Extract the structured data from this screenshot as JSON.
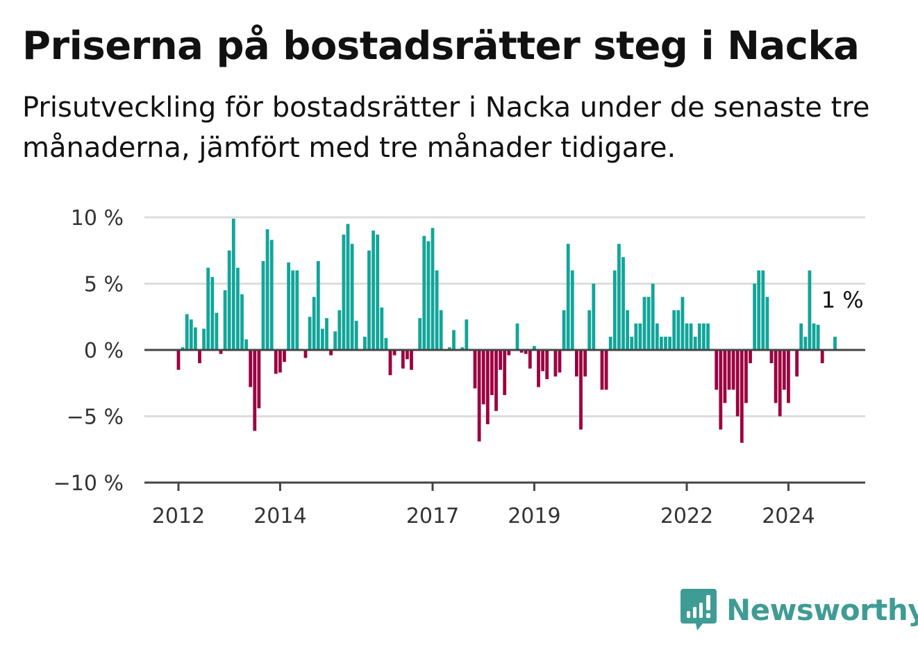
{
  "chart_data": {
    "type": "bar",
    "title": "Priserna på bostadsrätter steg i Nacka",
    "subtitle": "Prisutveckling för bostadsrätter i Nacka under de senaste tre månaderna, jämfört med tre månader tidigare.",
    "ylabel": "",
    "xlabel": "",
    "ylim": [
      -10,
      10
    ],
    "yticks": [
      10,
      5,
      0,
      -5,
      -10
    ],
    "ytick_labels": [
      "10 %",
      "5 %",
      "0 %",
      "−5 %",
      "−10 %"
    ],
    "xticks": [
      2012,
      2014,
      2017,
      2019,
      2022,
      2024
    ],
    "xtick_labels": [
      "2012",
      "2014",
      "2017",
      "2019",
      "2022",
      "2024"
    ],
    "x_start": "2012-01",
    "positive_color": "#12a59a",
    "negative_color": "#9c0040",
    "grid": true,
    "annotation": {
      "text": "1 %",
      "x": "2024-09",
      "y": 1.0
    },
    "x": [
      "2012-01",
      "2012-02",
      "2012-03",
      "2012-04",
      "2012-05",
      "2012-06",
      "2012-07",
      "2012-08",
      "2012-09",
      "2012-10",
      "2012-11",
      "2012-12",
      "2013-01",
      "2013-02",
      "2013-03",
      "2013-04",
      "2013-05",
      "2013-06",
      "2013-07",
      "2013-08",
      "2013-09",
      "2013-10",
      "2013-11",
      "2013-12",
      "2014-01",
      "2014-02",
      "2014-03",
      "2014-04",
      "2014-05",
      "2014-06",
      "2014-07",
      "2014-08",
      "2014-09",
      "2014-10",
      "2014-11",
      "2014-12",
      "2015-01",
      "2015-02",
      "2015-03",
      "2015-04",
      "2015-05",
      "2015-06",
      "2015-07",
      "2015-08",
      "2015-09",
      "2015-10",
      "2015-11",
      "2015-12",
      "2016-01",
      "2016-02",
      "2016-03",
      "2016-04",
      "2016-05",
      "2016-06",
      "2016-07",
      "2016-08",
      "2016-09",
      "2016-10",
      "2016-11",
      "2016-12",
      "2017-01",
      "2017-02",
      "2017-03",
      "2017-04",
      "2017-05",
      "2017-06",
      "2017-07",
      "2017-08",
      "2017-09",
      "2017-10",
      "2017-11",
      "2017-12",
      "2018-01",
      "2018-02",
      "2018-03",
      "2018-04",
      "2018-05",
      "2018-06",
      "2018-07",
      "2018-08",
      "2018-09",
      "2018-10",
      "2018-11",
      "2018-12",
      "2019-01",
      "2019-02",
      "2019-03",
      "2019-04",
      "2019-05",
      "2019-06",
      "2019-07",
      "2019-08",
      "2019-09",
      "2019-10",
      "2019-11",
      "2019-12",
      "2020-01",
      "2020-02",
      "2020-03",
      "2020-04",
      "2020-05",
      "2020-06",
      "2020-07",
      "2020-08",
      "2020-09",
      "2020-10",
      "2020-11",
      "2020-12",
      "2021-01",
      "2021-02",
      "2021-03",
      "2021-04",
      "2021-05",
      "2021-06",
      "2021-07",
      "2021-08",
      "2021-09",
      "2021-10",
      "2021-11",
      "2021-12",
      "2022-01",
      "2022-02",
      "2022-03",
      "2022-04",
      "2022-05",
      "2022-06",
      "2022-07",
      "2022-08",
      "2022-09",
      "2022-10",
      "2022-11",
      "2022-12",
      "2023-01",
      "2023-02",
      "2023-03",
      "2023-04",
      "2023-05",
      "2023-06",
      "2023-07",
      "2023-08",
      "2023-09",
      "2023-10",
      "2023-11",
      "2023-12",
      "2024-01",
      "2024-02",
      "2024-03",
      "2024-04",
      "2024-05",
      "2024-06",
      "2024-07",
      "2024-08",
      "2024-09",
      "2024-10",
      "2024-11",
      "2024-12"
    ],
    "values": [
      -1.5,
      0.2,
      2.7,
      2.3,
      1.7,
      -1.0,
      1.6,
      6.2,
      5.5,
      2.8,
      -0.3,
      4.5,
      7.5,
      9.9,
      6.2,
      4.2,
      0.8,
      -2.8,
      -6.1,
      -4.4,
      6.7,
      9.1,
      8.3,
      -1.8,
      -1.7,
      -0.9,
      6.6,
      6.0,
      6.0,
      0.0,
      -0.6,
      2.5,
      4.0,
      6.7,
      1.6,
      2.4,
      -0.4,
      1.4,
      3.0,
      8.7,
      9.5,
      8.0,
      2.2,
      0.0,
      1.0,
      7.5,
      9.0,
      8.7,
      3.2,
      0.9,
      -1.9,
      -0.4,
      0.0,
      -1.4,
      -0.7,
      -1.5,
      0.0,
      2.4,
      8.6,
      8.2,
      9.2,
      6.0,
      3.0,
      0.0,
      0.2,
      1.5,
      0.0,
      0.2,
      2.3,
      0.0,
      -2.9,
      -6.9,
      -4.1,
      -5.6,
      -3.4,
      -4.6,
      -1.5,
      -3.4,
      -0.4,
      0.0,
      2.0,
      -0.2,
      -0.3,
      -1.4,
      0.3,
      -2.8,
      -1.6,
      -2.2,
      0.0,
      -2.0,
      -1.7,
      3.0,
      8.0,
      6.0,
      -2.0,
      -6.0,
      -2.0,
      3.0,
      5.0,
      0.0,
      -3.0,
      -3.0,
      1.0,
      6.0,
      8.0,
      7.0,
      3.0,
      1.0,
      2.0,
      2.0,
      4.0,
      4.0,
      5.0,
      2.0,
      1.0,
      1.0,
      1.0,
      3.0,
      3.0,
      4.0,
      2.0,
      2.0,
      1.0,
      2.0,
      2.0,
      2.0,
      0.0,
      -3.0,
      -6.0,
      -4.0,
      -3.0,
      -3.0,
      -5.0,
      -7.0,
      -4.0,
      -1.0,
      5.0,
      6.0,
      6.0,
      4.0,
      -1.0,
      -4.0,
      -5.0,
      -3.0,
      -4.0,
      0.0,
      -2.0,
      2.0,
      1.0,
      6.0,
      2.0,
      1.9,
      -1.0,
      0.0,
      0.0,
      1.0
    ]
  },
  "brand": {
    "name": "Newsworthy",
    "color": "#3f9c94"
  }
}
